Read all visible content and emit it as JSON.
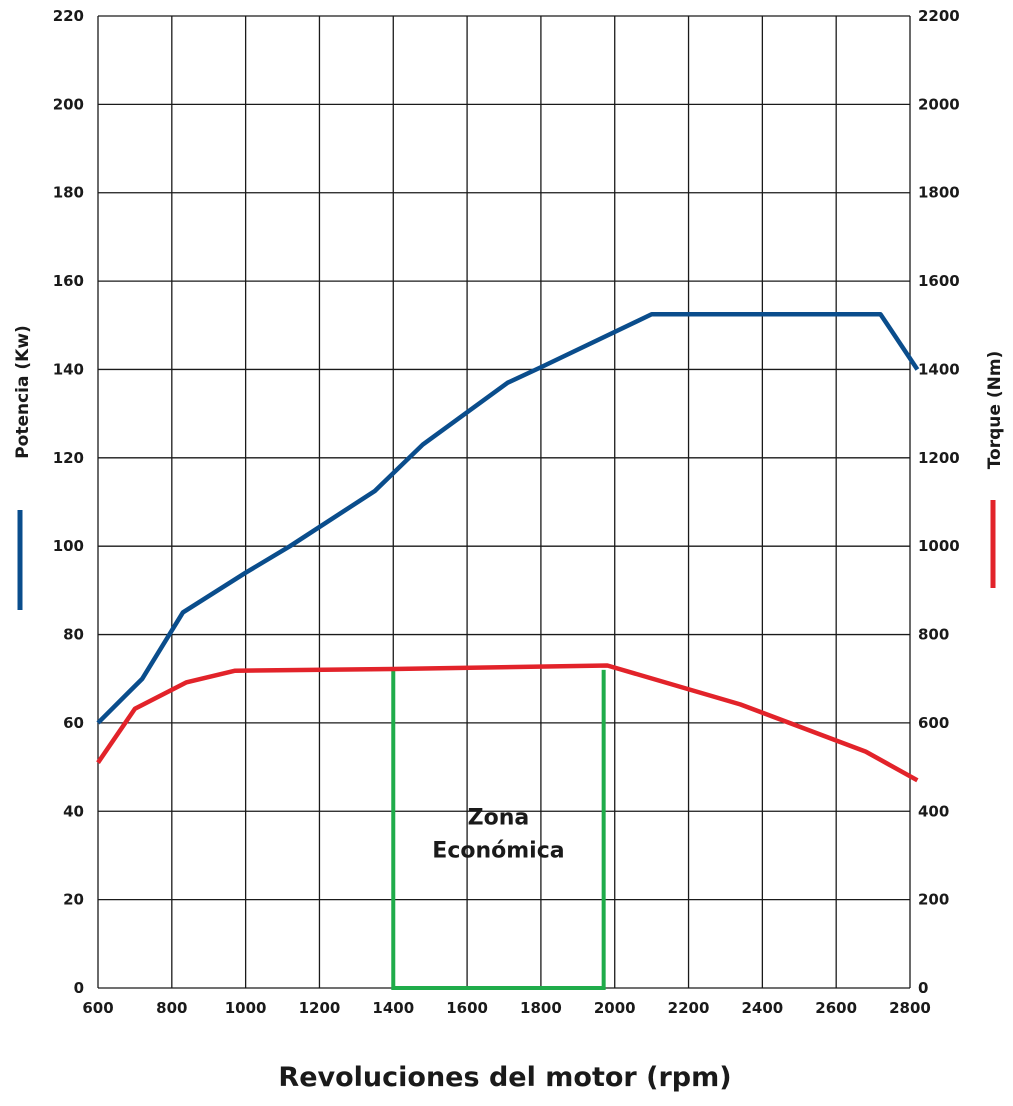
{
  "chart_data": {
    "type": "line",
    "title": "",
    "xlabel": "Revoluciones del motor (rpm)",
    "ylabel_left": "Potencia (Kw)",
    "ylabel_right": "Torque (Nm)",
    "xlim": [
      600,
      2800
    ],
    "ylim_left": [
      0,
      220
    ],
    "ylim_right": [
      0,
      2200
    ],
    "x_ticks": [
      "600",
      "800",
      "1000",
      "1200",
      "1400",
      "1600",
      "1800",
      "2000",
      "2200",
      "2400",
      "2600",
      "2800"
    ],
    "y_left_ticks": [
      "0",
      "20",
      "40",
      "60",
      "80",
      "100",
      "120",
      "140",
      "160",
      "180",
      "200",
      "220"
    ],
    "y_right_ticks": [
      "0",
      "200",
      "400",
      "600",
      "800",
      "1000",
      "1200",
      "1400",
      "1600",
      "1800",
      "2000",
      "2200"
    ],
    "grid": true,
    "series": [
      {
        "name": "Potencia (Kw)",
        "axis": "left",
        "color": "#0a4d8c",
        "x": [
          600,
          720,
          830,
          1000,
          1120,
          1350,
          1480,
          1710,
          1800,
          2100,
          2720,
          2820
        ],
        "y": [
          60,
          70,
          85,
          94,
          100,
          112.5,
          123,
          137,
          140.5,
          152.5,
          152.5,
          140
        ]
      },
      {
        "name": "Torque (Nm)",
        "axis": "right",
        "color": "#e2232a",
        "x": [
          600,
          700,
          840,
          970,
          1400,
          1980,
          2340,
          2680,
          2820
        ],
        "y": [
          510,
          632,
          692,
          718,
          722,
          730,
          642,
          535,
          470
        ]
      }
    ],
    "annotations": [
      {
        "text_line1": "Zona",
        "text_line2": "Económica",
        "x_start": 1400,
        "x_end": 1970,
        "y_top": 72,
        "color": "#1fac4a"
      }
    ]
  }
}
